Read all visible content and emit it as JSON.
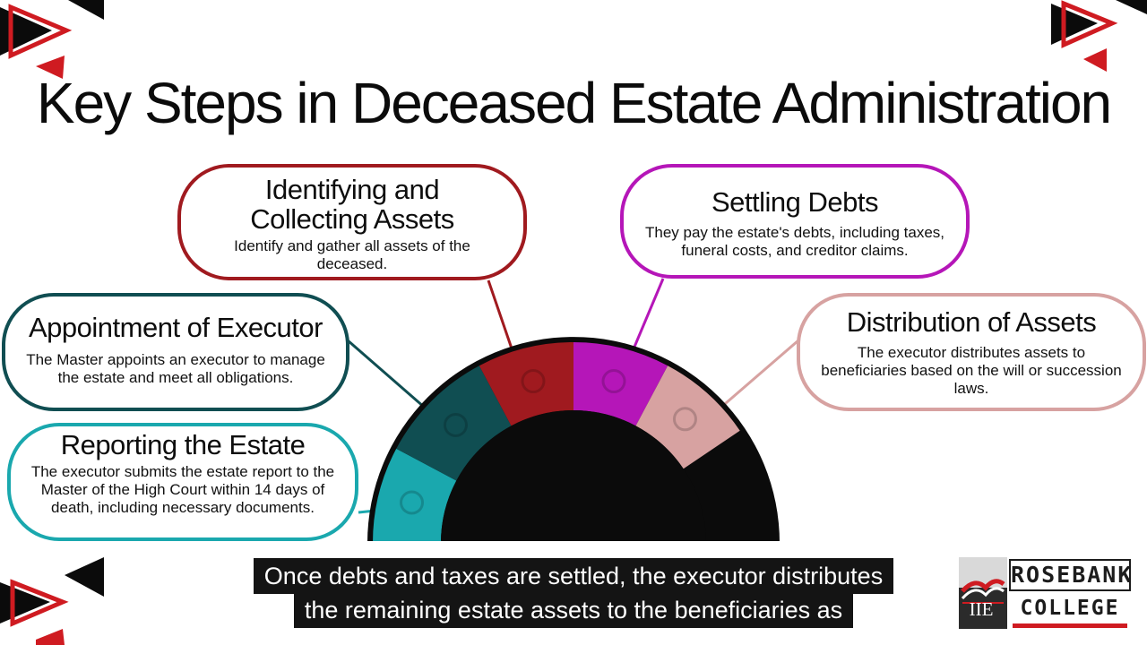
{
  "title": "Key Steps in Deceased Estate Administration",
  "steps": {
    "identifying": {
      "heading": "Identifying and Collecting Assets",
      "description": "Identify and gather all assets of the deceased."
    },
    "settling": {
      "heading": "Settling Debts",
      "description": "They pay the estate's debts, including taxes, funeral costs, and creditor claims."
    },
    "appointment": {
      "heading": "Appointment of Executor",
      "description": "The Master appoints an executor to manage the estate and meet all obligations."
    },
    "distribution": {
      "heading": "Distribution of Assets",
      "description": "The executor distributes assets to beneficiaries based on the will or succession laws."
    },
    "reporting": {
      "heading": "Reporting the Estate",
      "description": "The executor submits the estate report to the Master of the High Court within 14 days of death, including necessary documents."
    }
  },
  "caption": {
    "line1": "Once debts and taxes are settled, the executor distributes",
    "line2": "the remaining estate assets to the beneficiaries as"
  },
  "logo": {
    "brand_line1": "ROSEBANK",
    "brand_line2": "COLLEGE",
    "mark": "IIE"
  },
  "colors": {
    "reporting": "#1aa8ae",
    "appointment": "#104e52",
    "identifying": "#a01a1f",
    "settling": "#b516b8",
    "distribution": "#d7a2a1",
    "accent_red": "#cf1b21",
    "black": "#0b0b0b"
  },
  "icons": [
    "play-arrow-decoration-icon",
    "rosebank-college-logo-icon"
  ]
}
